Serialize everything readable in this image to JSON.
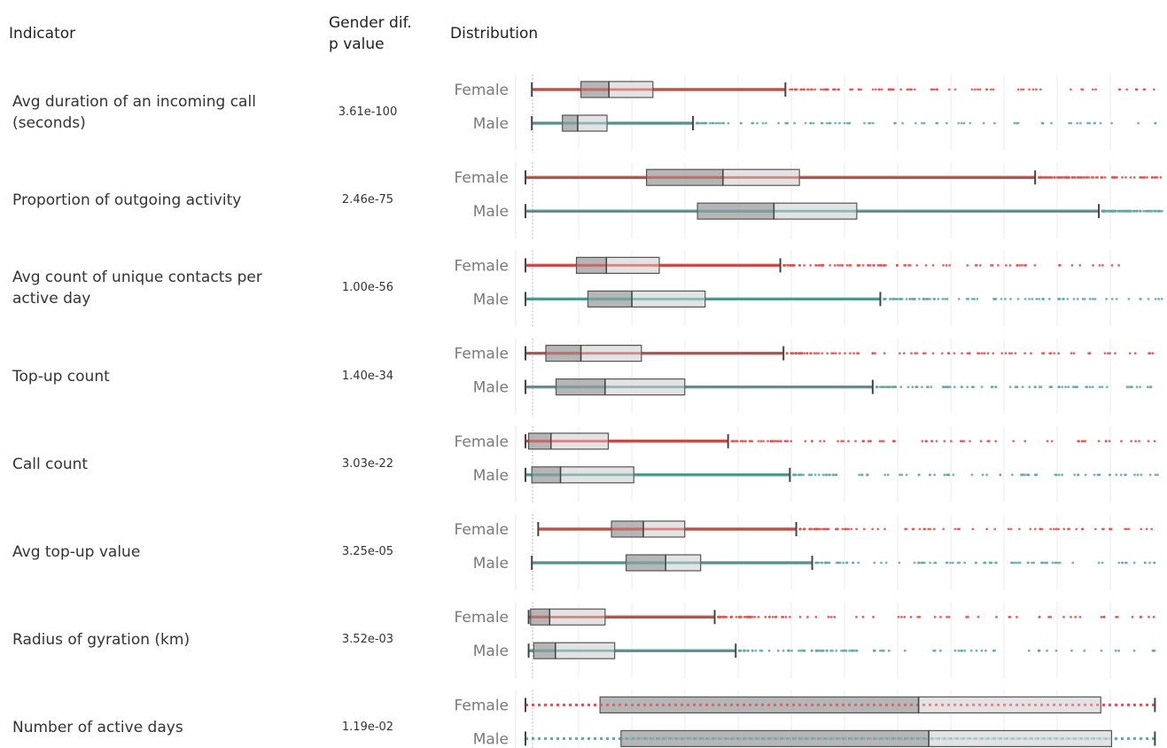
{
  "header": {
    "indicator": "Indicator",
    "pvalue_line1": "Gender dif.",
    "pvalue_line2": "p value",
    "distribution": "Distribution"
  },
  "colors": {
    "female": "#d9534f",
    "male": "#5fa8a3",
    "box_dark": "#9e9e9e",
    "box_light": "#dcdcdc",
    "grid": "#eeeeee"
  },
  "chart_data": {
    "type": "boxplot",
    "x_scale": "normalized",
    "groups": [
      "Female",
      "Male"
    ],
    "rows": [
      {
        "indicator": "Avg duration of an incoming call (seconds)",
        "label_lines": [
          "Avg duration of an incoming call",
          "(seconds)"
        ],
        "p_value": "3.61e-100",
        "female": {
          "min": 0.01,
          "q1": 0.087,
          "median": 0.131,
          "q3": 0.2,
          "whisker": 0.408,
          "max": 1.0
        },
        "male": {
          "min": 0.01,
          "q1": 0.058,
          "median": 0.082,
          "q3": 0.128,
          "whisker": 0.263,
          "max": 1.0
        }
      },
      {
        "indicator": "Proportion of outgoing activity",
        "label_lines": [
          "Proportion of outgoing activity"
        ],
        "p_value": "2.46e-75",
        "female": {
          "min": 0.0,
          "q1": 0.19,
          "median": 0.31,
          "q3": 0.43,
          "whisker": 0.8,
          "max": 1.0
        },
        "male": {
          "min": 0.0,
          "q1": 0.27,
          "median": 0.39,
          "q3": 0.52,
          "whisker": 0.9,
          "max": 1.0
        }
      },
      {
        "indicator": "Avg count of unique contacts per active day",
        "label_lines": [
          "Avg count of unique contacts per",
          "active day"
        ],
        "p_value": "1.00e-56",
        "female": {
          "min": 0.0,
          "q1": 0.08,
          "median": 0.127,
          "q3": 0.21,
          "whisker": 0.4,
          "max": 0.95
        },
        "male": {
          "min": 0.0,
          "q1": 0.098,
          "median": 0.167,
          "q3": 0.282,
          "whisker": 0.557,
          "max": 1.0
        }
      },
      {
        "indicator": "Top-up count",
        "label_lines": [
          "Top-up count"
        ],
        "p_value": "1.40e-34",
        "female": {
          "min": 0.0,
          "q1": 0.032,
          "median": 0.087,
          "q3": 0.182,
          "whisker": 0.405,
          "max": 1.0
        },
        "male": {
          "min": 0.0,
          "q1": 0.048,
          "median": 0.125,
          "q3": 0.25,
          "whisker": 0.545,
          "max": 1.0
        }
      },
      {
        "indicator": "Call count",
        "label_lines": [
          "Call count"
        ],
        "p_value": "3.03e-22",
        "female": {
          "min": 0.0,
          "q1": 0.005,
          "median": 0.04,
          "q3": 0.13,
          "whisker": 0.318,
          "max": 1.0
        },
        "male": {
          "min": 0.0,
          "q1": 0.01,
          "median": 0.055,
          "q3": 0.17,
          "whisker": 0.415,
          "max": 1.0
        }
      },
      {
        "indicator": "Avg top-up value",
        "label_lines": [
          "Avg top-up value"
        ],
        "p_value": "3.25e-05",
        "female": {
          "min": 0.02,
          "q1": 0.135,
          "median": 0.185,
          "q3": 0.25,
          "whisker": 0.425,
          "max": 1.0
        },
        "male": {
          "min": 0.01,
          "q1": 0.158,
          "median": 0.22,
          "q3": 0.275,
          "whisker": 0.45,
          "max": 1.0
        }
      },
      {
        "indicator": "Radius of gyration (km)",
        "label_lines": [
          "Radius of gyration (km)"
        ],
        "p_value": "3.52e-03",
        "female": {
          "min": 0.005,
          "q1": 0.008,
          "median": 0.038,
          "q3": 0.125,
          "whisker": 0.297,
          "max": 1.0
        },
        "male": {
          "min": 0.005,
          "q1": 0.013,
          "median": 0.047,
          "q3": 0.14,
          "whisker": 0.33,
          "max": 1.0
        }
      },
      {
        "indicator": "Number of active days",
        "label_lines": [
          "Number of active days"
        ],
        "p_value": "1.19e-02",
        "female": {
          "min": 0.0,
          "q1": 0.117,
          "median": 0.617,
          "q3": 0.903,
          "whisker": 0.988,
          "max": 0.988
        },
        "male": {
          "min": 0.0,
          "q1": 0.15,
          "median": 0.633,
          "q3": 0.92,
          "whisker": 0.988,
          "max": 0.988
        }
      }
    ]
  }
}
